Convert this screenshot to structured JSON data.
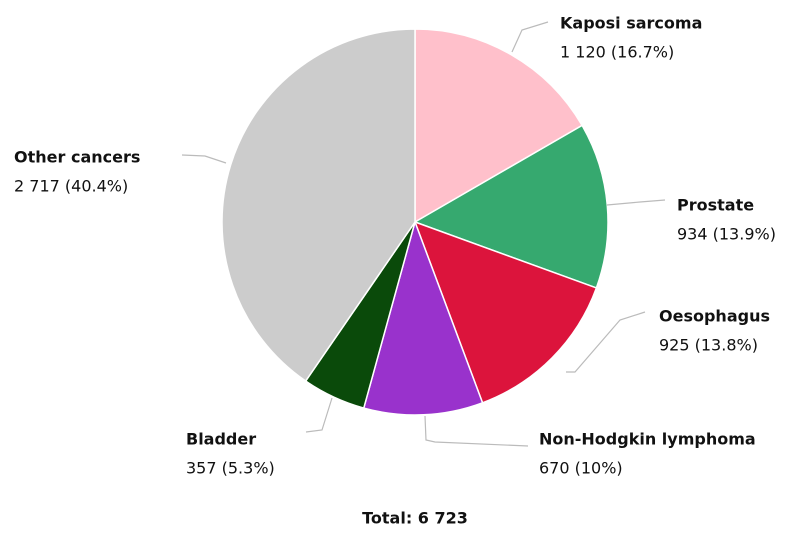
{
  "chart_data": {
    "type": "pie",
    "categories": [
      "Kaposi sarcoma",
      "Prostate",
      "Oesophagus",
      "Non-Hodgkin lymphoma",
      "Bladder",
      "Other cancers"
    ],
    "values": [
      1120,
      934,
      925,
      670,
      357,
      2717
    ],
    "value_labels": [
      "1 120 (16.7%)",
      "934 (13.9%)",
      "925 (13.8%)",
      "670 (10%)",
      "357 (5.3%)",
      "2 717 (40.4%)"
    ],
    "colors": [
      "#ffc0cb",
      "#36a96f",
      "#dc143c",
      "#9932cc",
      "#0a4a0a",
      "#cccccc"
    ],
    "caption": "Total: 6 723"
  }
}
